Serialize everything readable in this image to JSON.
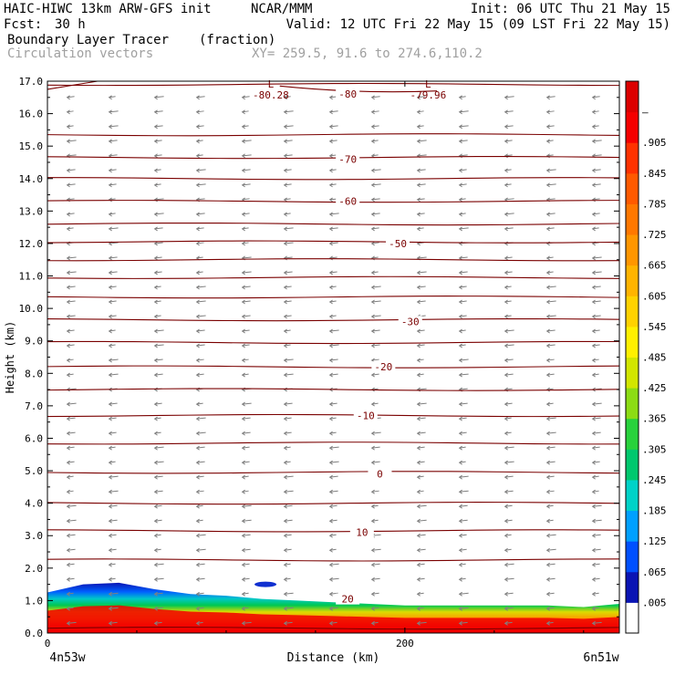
{
  "header": {
    "model": "HAIC-HIWC 13km ARW-GFS init",
    "org": "NCAR/MMM",
    "init": "Init: 06 UTC Thu 21 May 15",
    "fcst_label": "Fcst:",
    "fcst_value": "30 h",
    "valid": "Valid: 12 UTC Fri 22 May 15 (09 LST Fri 22 May 15)",
    "field": "Boundary Layer Tracer",
    "units": "(fraction)",
    "vectors": "Circulation vectors",
    "xy": "XY= 259.5, 91.6 to 274.6,110.2"
  },
  "chart_data": {
    "type": "cross-section",
    "xlabel": "Distance (km)",
    "ylabel": "Height (km)",
    "xlim": [
      0,
      320
    ],
    "ylim": [
      0,
      17
    ],
    "x_ticks": [
      0,
      200
    ],
    "x_ends": [
      "4n53w",
      "6n51w"
    ],
    "y_ticks": [
      "0.0",
      "1.0",
      "2.0",
      "3.0",
      "4.0",
      "5.0",
      "6.0",
      "7.0",
      "8.0",
      "9.0",
      "10.0",
      "11.0",
      "12.0",
      "13.0",
      "14.0",
      "15.0",
      "16.0",
      "17.0"
    ],
    "colorbar_labels": [
      ".005",
      ".065",
      ".125",
      ".185",
      ".245",
      ".305",
      ".365",
      ".425",
      ".485",
      ".545",
      ".605",
      ".665",
      ".725",
      ".785",
      ".845",
      ".905",
      "–"
    ],
    "colorbar_colors": [
      "#ffffff",
      "#0a14b4",
      "#0050ff",
      "#00a0ff",
      "#00d2c8",
      "#00c86e",
      "#28d23c",
      "#8cdc14",
      "#d2e600",
      "#fff000",
      "#ffd200",
      "#ffb400",
      "#ff9600",
      "#ff7800",
      "#ff5a00",
      "#ff3200",
      "#f50000",
      "#dc0000"
    ],
    "temperature_contours": [
      {
        "label": "-80",
        "x": 168,
        "y": 16.6
      },
      {
        "label": "-70",
        "x": 168,
        "y": 14.6
      },
      {
        "label": "-60",
        "x": 168,
        "y": 13.3
      },
      {
        "label": "-50",
        "x": 196,
        "y": 12.0
      },
      {
        "label": "-30",
        "x": 203,
        "y": 9.6
      },
      {
        "label": "-20",
        "x": 188,
        "y": 8.2
      },
      {
        "label": "-10",
        "x": 178,
        "y": 6.7
      },
      {
        "label": "0",
        "x": 186,
        "y": 4.9
      },
      {
        "label": "10",
        "x": 176,
        "y": 3.1
      },
      {
        "label": "20",
        "x": 168,
        "y": 1.05
      }
    ],
    "minima": [
      {
        "label": "L",
        "value": "-80.28",
        "x": 125,
        "y": 16.8
      },
      {
        "label": "L",
        "value": "-79.96",
        "x": 213,
        "y": 16.8
      }
    ],
    "contour_heights": [
      0.15,
      2.25,
      3.15,
      4.0,
      4.95,
      5.85,
      6.7,
      7.5,
      8.2,
      8.95,
      9.65,
      10.35,
      10.95,
      11.5,
      12.05,
      12.6,
      13.3,
      14.0,
      14.65,
      15.35,
      16.9
    ],
    "wind_note": "",
    "pbl_tracer_top_km": [
      [
        0,
        1.25
      ],
      [
        20,
        1.5
      ],
      [
        40,
        1.55
      ],
      [
        60,
        1.35
      ],
      [
        80,
        1.2
      ],
      [
        100,
        1.15
      ],
      [
        120,
        1.05
      ],
      [
        140,
        1.0
      ],
      [
        160,
        0.95
      ],
      [
        180,
        0.9
      ],
      [
        200,
        0.85
      ],
      [
        240,
        0.85
      ],
      [
        280,
        0.85
      ],
      [
        300,
        0.8
      ],
      [
        320,
        0.9
      ]
    ]
  }
}
